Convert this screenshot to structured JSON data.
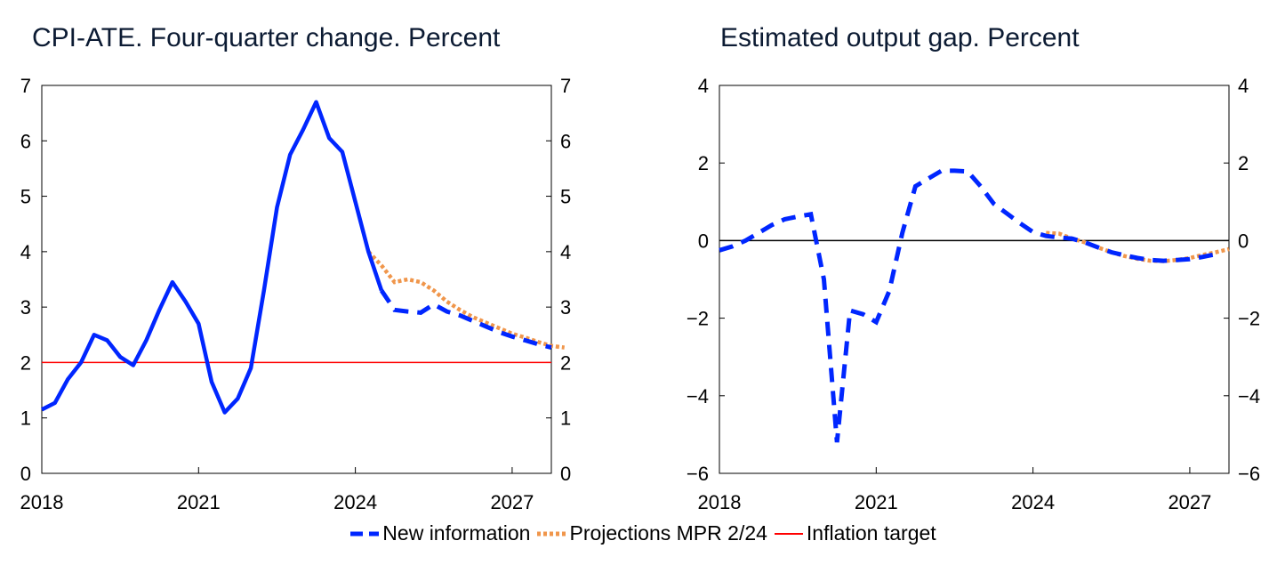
{
  "colors": {
    "new_information": "#0026ff",
    "projections": "#f0964b",
    "inflation_target": "#ff0000"
  },
  "legend": [
    {
      "label": "New information",
      "style": "dashed",
      "color": "#0026ff"
    },
    {
      "label": "Projections MPR 2/24",
      "style": "dotted",
      "color": "#f0964b"
    },
    {
      "label": "Inflation target",
      "style": "solid",
      "color": "#ff0000"
    }
  ],
  "chart_data": [
    {
      "type": "line",
      "title": "CPI-ATE. Four-quarter change. Percent",
      "xlim": [
        2018,
        2027.75
      ],
      "ylim": [
        0,
        7
      ],
      "xticks": [
        "2018",
        "2021",
        "2024",
        "2027"
      ],
      "yticks": [
        "0",
        "1",
        "2",
        "3",
        "4",
        "5",
        "6",
        "7"
      ],
      "grid": false,
      "series": [
        {
          "name": "New information",
          "x_start": 2018,
          "step": 0.25,
          "solid_until": 2024.5,
          "values": [
            1.15,
            1.27,
            1.7,
            2.0,
            2.5,
            2.4,
            2.1,
            1.95,
            2.4,
            2.95,
            3.45,
            3.1,
            2.7,
            1.65,
            1.1,
            1.35,
            1.9,
            3.3,
            4.8,
            5.75,
            6.2,
            6.7,
            6.05,
            5.8,
            4.9,
            4.0,
            3.3,
            2.95,
            2.92,
            2.9,
            3.05,
            2.92,
            2.85,
            2.75,
            2.65,
            2.55,
            2.47,
            2.4,
            2.33,
            2.27
          ]
        },
        {
          "name": "Projections MPR 2/24",
          "x_start": 2024.25,
          "step": 0.25,
          "values": [
            4.0,
            3.75,
            3.45,
            3.5,
            3.45,
            3.3,
            3.1,
            2.95,
            2.82,
            2.72,
            2.62,
            2.52,
            2.45,
            2.37,
            2.3,
            2.27
          ]
        },
        {
          "name": "Inflation target",
          "x": [
            2018,
            2027.75
          ],
          "values": [
            2,
            2
          ]
        }
      ]
    },
    {
      "type": "line",
      "title": "Estimated output gap. Percent",
      "xlim": [
        2018,
        2027.75
      ],
      "ylim": [
        -6,
        4
      ],
      "xticks": [
        "2018",
        "2021",
        "2024",
        "2027"
      ],
      "yticks": [
        "−6",
        "−4",
        "−2",
        "0",
        "2",
        "4"
      ],
      "grid": false,
      "series": [
        {
          "name": "New information",
          "x_start": 2018,
          "step": 0.25,
          "values": [
            -0.25,
            -0.15,
            0.0,
            0.2,
            0.4,
            0.55,
            0.62,
            0.68,
            -1.0,
            -5.2,
            -1.8,
            -1.9,
            -2.1,
            -1.3,
            0.2,
            1.4,
            1.6,
            1.8,
            1.8,
            1.78,
            1.4,
            0.95,
            0.7,
            0.45,
            0.22,
            0.12,
            0.08,
            0.05,
            -0.05,
            -0.18,
            -0.3,
            -0.38,
            -0.45,
            -0.5,
            -0.52,
            -0.5,
            -0.48,
            -0.42,
            -0.35
          ]
        },
        {
          "name": "Projections MPR 2/24",
          "x_start": 2024.25,
          "step": 0.25,
          "values": [
            0.2,
            0.18,
            0.05,
            -0.05,
            -0.18,
            -0.3,
            -0.4,
            -0.47,
            -0.52,
            -0.53,
            -0.5,
            -0.45,
            -0.37,
            -0.3,
            -0.22
          ]
        }
      ]
    }
  ]
}
